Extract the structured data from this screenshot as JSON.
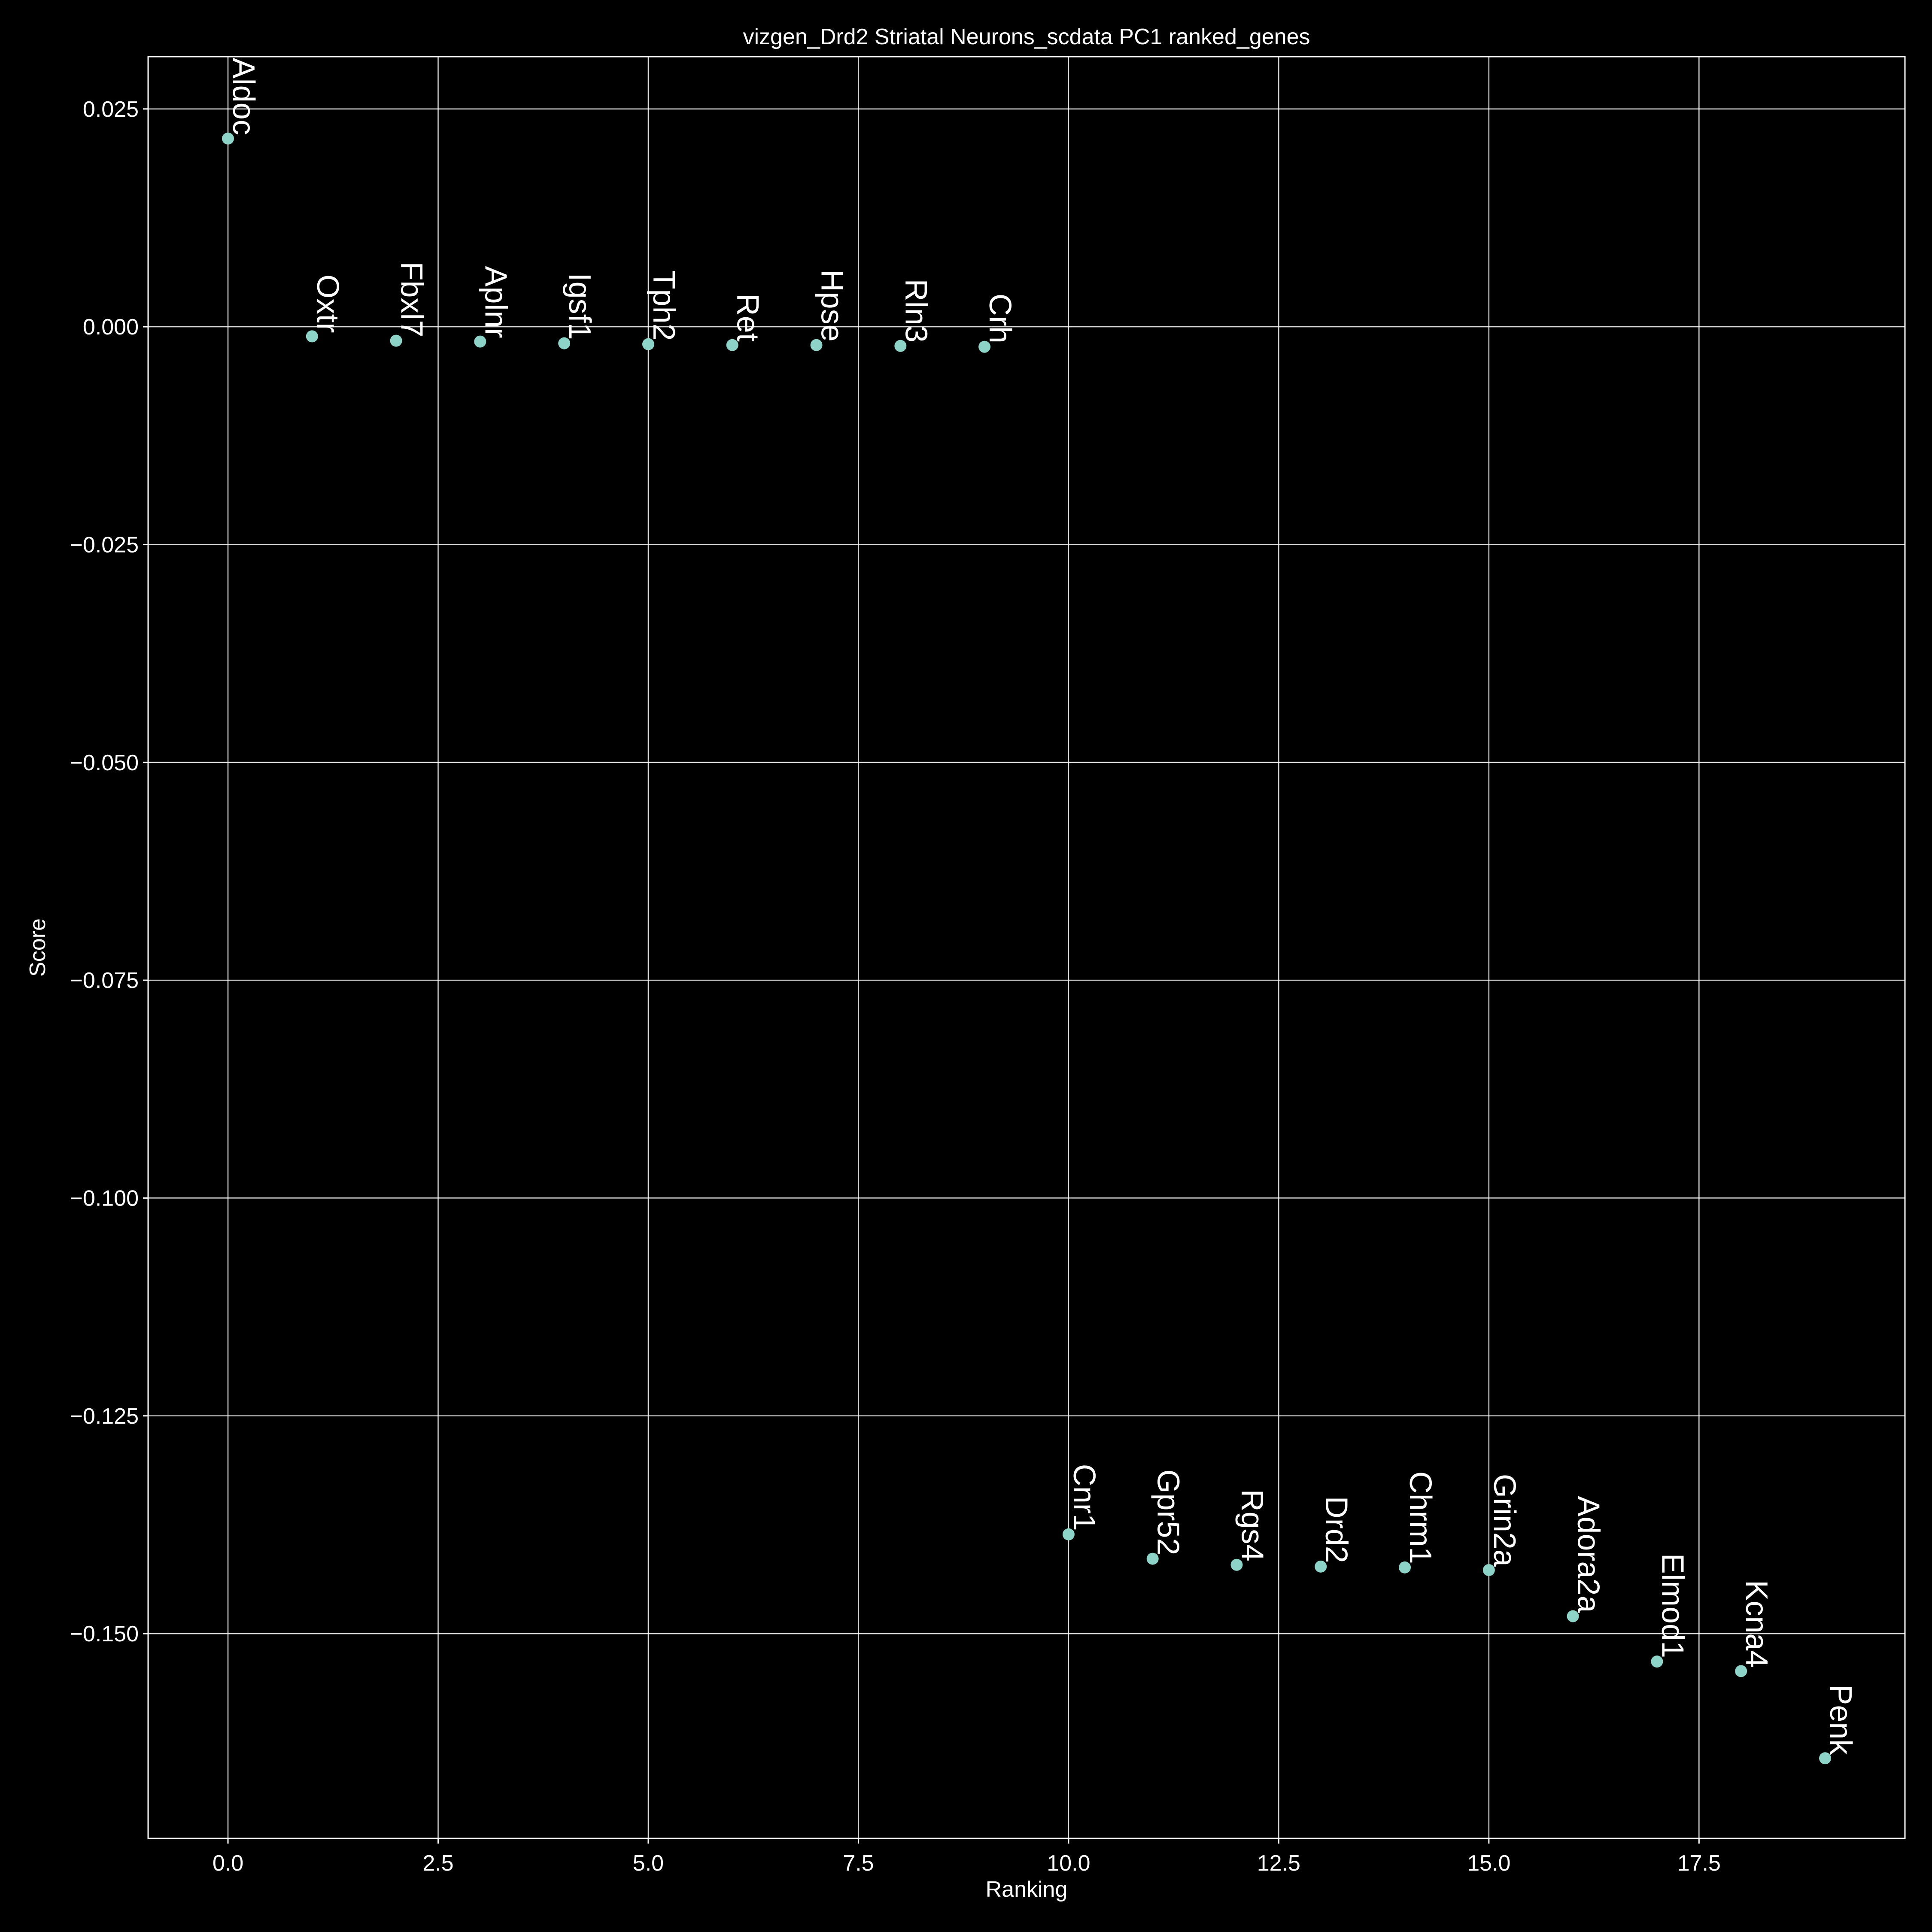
{
  "chart_data": {
    "type": "scatter",
    "title": "vizgen_Drd2 Striatal Neurons_scdata PC1 ranked_genes",
    "xlabel": "Ranking",
    "ylabel": "Score",
    "xlim": [
      -0.95,
      19.95
    ],
    "ylim": [
      -0.1735,
      0.031
    ],
    "xticks": [
      0.0,
      2.5,
      5.0,
      7.5,
      10.0,
      12.5,
      15.0,
      17.5
    ],
    "xtick_labels": [
      "0.0",
      "2.5",
      "5.0",
      "7.5",
      "10.0",
      "12.5",
      "15.0",
      "17.5"
    ],
    "yticks": [
      0.025,
      0.0,
      -0.025,
      -0.05,
      -0.075,
      -0.1,
      -0.125,
      -0.15
    ],
    "ytick_labels": [
      "0.025",
      "0.000",
      "−0.025",
      "−0.050",
      "−0.075",
      "−0.100",
      "−0.125",
      "−0.150"
    ],
    "grid": true,
    "point_color": "#8dd3c7",
    "background": "#000000",
    "foreground": "#ffffff",
    "points": [
      {
        "x": 0,
        "y": 0.0216,
        "label": "Aldoc"
      },
      {
        "x": 1,
        "y": -0.0011,
        "label": "Oxtr"
      },
      {
        "x": 2,
        "y": -0.0016,
        "label": "Fbxl7"
      },
      {
        "x": 3,
        "y": -0.0017,
        "label": "Aplnr"
      },
      {
        "x": 4,
        "y": -0.0019,
        "label": "Igsf1"
      },
      {
        "x": 5,
        "y": -0.002,
        "label": "Tph2"
      },
      {
        "x": 6,
        "y": -0.0021,
        "label": "Ret"
      },
      {
        "x": 7,
        "y": -0.0021,
        "label": "Hpse"
      },
      {
        "x": 8,
        "y": -0.0022,
        "label": "Rln3"
      },
      {
        "x": 9,
        "y": -0.0023,
        "label": "Crh"
      },
      {
        "x": 10,
        "y": -0.1386,
        "label": "Cnr1"
      },
      {
        "x": 11,
        "y": -0.1414,
        "label": "Gpr52"
      },
      {
        "x": 12,
        "y": -0.1421,
        "label": "Rgs4"
      },
      {
        "x": 13,
        "y": -0.1423,
        "label": "Drd2"
      },
      {
        "x": 14,
        "y": -0.1424,
        "label": "Chrm1"
      },
      {
        "x": 15,
        "y": -0.1427,
        "label": "Grin2a"
      },
      {
        "x": 16,
        "y": -0.148,
        "label": "Adora2a"
      },
      {
        "x": 17,
        "y": -0.1532,
        "label": "Elmod1"
      },
      {
        "x": 18,
        "y": -0.1543,
        "label": "Kcna4"
      },
      {
        "x": 19,
        "y": -0.1643,
        "label": "Penk"
      }
    ]
  }
}
